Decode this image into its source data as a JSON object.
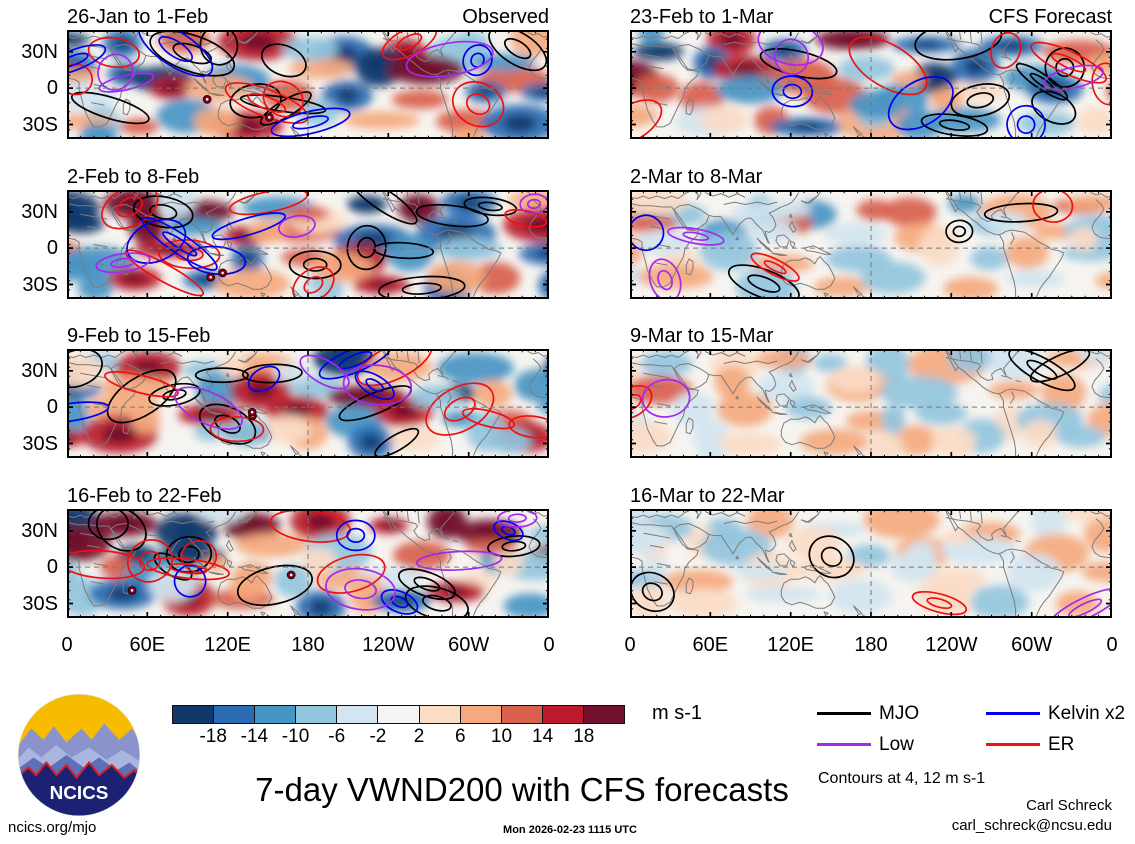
{
  "figure": {
    "main_title": "7-day VWND200 with CFS forecasts",
    "site_link": "ncics.org/mjo",
    "timestamp": "Mon 2026-02-23 1115 UTC",
    "credit_name": "Carl Schreck",
    "credit_email": "carl_schreck@ncsu.edu",
    "logo_text": "NCICS"
  },
  "chart_data": {
    "type": "heatmap",
    "title": "7-day VWND200 with CFS forecasts",
    "variable": "200-hPa meridional wind (VWND200) weekly anomalies, filled shading with wave-filtered contours",
    "units": "m s-1",
    "column_headings": [
      "Observed",
      "CFS Forecast"
    ],
    "x_tick_labels": [
      "0",
      "60E",
      "120E",
      "180",
      "120W",
      "60W",
      "0"
    ],
    "y_tick_labels": [
      "30N",
      "0",
      "30S"
    ],
    "panels": [
      {
        "row": 1,
        "column": "left",
        "label": "26-Jan to 1-Feb",
        "corner_label": "Observed",
        "anomaly_strength": 1.0
      },
      {
        "row": 1,
        "column": "right",
        "label": "23-Feb to 1-Mar",
        "corner_label": "CFS Forecast",
        "anomaly_strength": 0.9
      },
      {
        "row": 2,
        "column": "left",
        "label": "2-Feb to 8-Feb",
        "corner_label": "",
        "anomaly_strength": 1.0
      },
      {
        "row": 2,
        "column": "right",
        "label": "2-Mar to 8-Mar",
        "corner_label": "",
        "anomaly_strength": 0.5
      },
      {
        "row": 3,
        "column": "left",
        "label": "9-Feb to 15-Feb",
        "corner_label": "",
        "anomaly_strength": 1.0
      },
      {
        "row": 3,
        "column": "right",
        "label": "9-Mar to 15-Mar",
        "corner_label": "",
        "anomaly_strength": 0.38
      },
      {
        "row": 4,
        "column": "left",
        "label": "16-Feb to 22-Feb",
        "corner_label": "",
        "anomaly_strength": 1.0
      },
      {
        "row": 4,
        "column": "right",
        "label": "16-Mar to 22-Mar",
        "corner_label": "",
        "anomaly_strength": 0.34
      }
    ],
    "colorbar": {
      "units_label": "m s-1",
      "boundaries": [
        -18,
        -14,
        -10,
        -6,
        -2,
        2,
        6,
        10,
        14,
        18
      ],
      "colors": [
        "#12386b",
        "#2a6cb3",
        "#4695c4",
        "#92c5de",
        "#d3e5f0",
        "#f6f5f3",
        "#fbdcc5",
        "#f5a97e",
        "#d9604c",
        "#bb1b2b",
        "#73102c"
      ]
    },
    "legend_entries": [
      {
        "label": "MJO",
        "color": "#000000"
      },
      {
        "label": "Low",
        "color": "#a428f0"
      },
      {
        "label": "Kelvin x2",
        "color": "#0000ee"
      },
      {
        "label": "ER",
        "color": "#ee1111"
      }
    ],
    "contour_note": "Contours at 4, 12 m s-1"
  }
}
